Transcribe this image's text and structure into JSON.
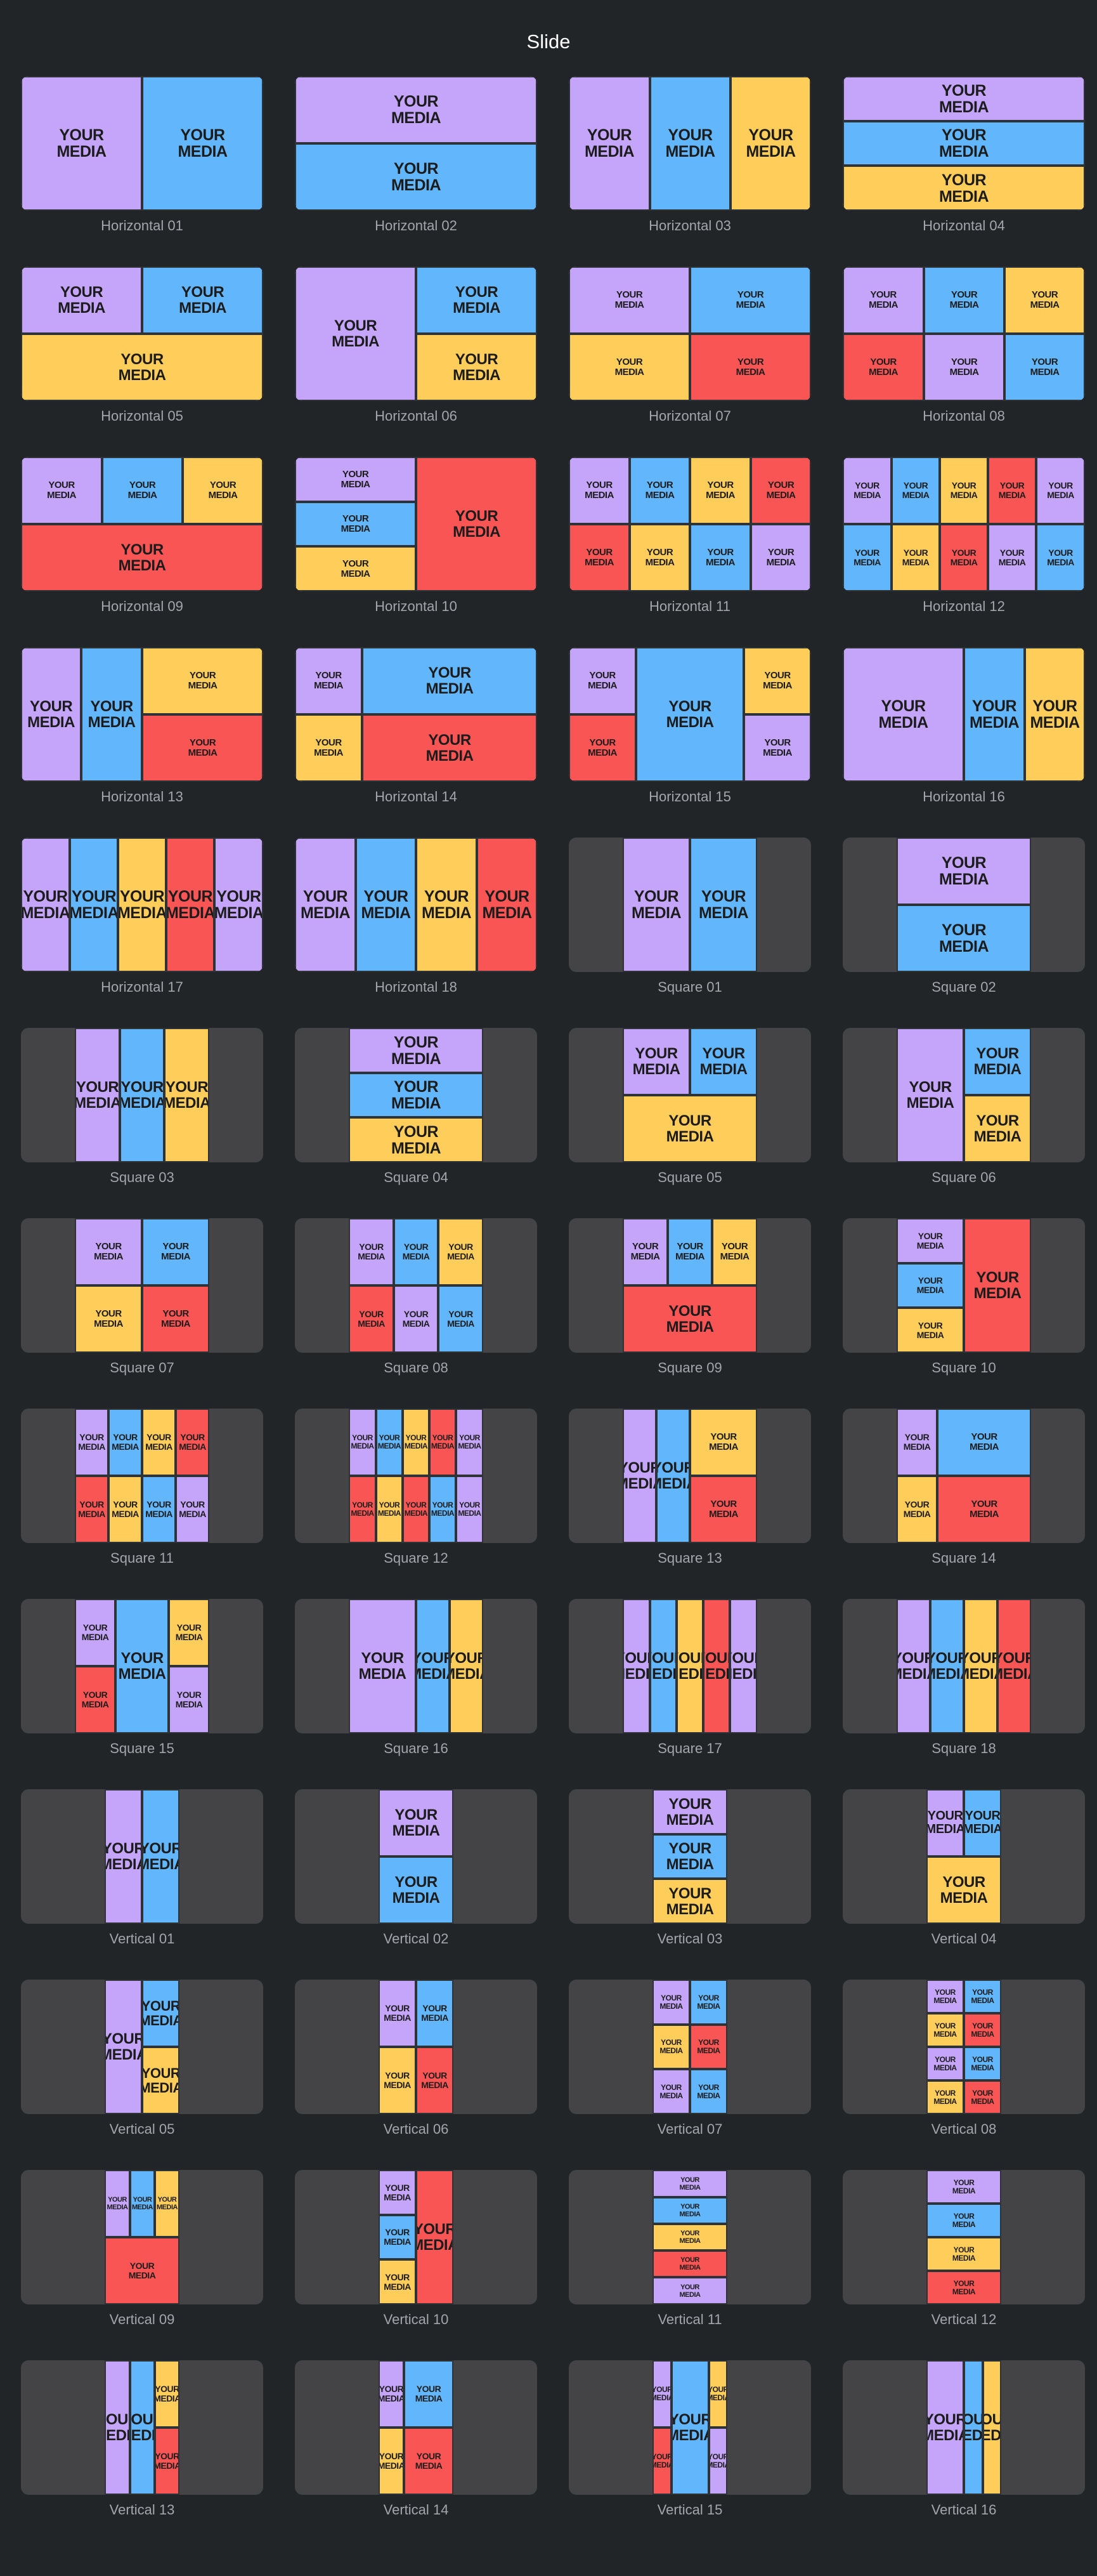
{
  "header": {
    "title": "Slide"
  },
  "media_text": "YOUR\nMEDIA",
  "colors": {
    "background": "#222528",
    "placeholder": "#444446",
    "cell_border": "#2e3338",
    "purple": "#c4a5fa",
    "blue": "#62b6fb",
    "yellow": "#fecd5a",
    "red": "#fa5555",
    "label": "#a3a6aa"
  },
  "layouts": [
    {
      "label": "Horizontal 01"
    },
    {
      "label": "Horizontal 02"
    },
    {
      "label": "Horizontal 03"
    },
    {
      "label": "Horizontal 04"
    },
    {
      "label": "Horizontal 05"
    },
    {
      "label": "Horizontal 06"
    },
    {
      "label": "Horizontal 07"
    },
    {
      "label": "Horizontal 08"
    },
    {
      "label": "Horizontal 09"
    },
    {
      "label": "Horizontal 10"
    },
    {
      "label": "Horizontal 11"
    },
    {
      "label": "Horizontal 12"
    },
    {
      "label": "Horizontal 13"
    },
    {
      "label": "Horizontal 14"
    },
    {
      "label": "Horizontal 15"
    },
    {
      "label": "Horizontal 16"
    },
    {
      "label": "Horizontal 17"
    },
    {
      "label": "Horizontal 18"
    },
    {
      "label": "Square 01"
    },
    {
      "label": "Square 02"
    },
    {
      "label": "Square 03"
    },
    {
      "label": "Square 04"
    },
    {
      "label": "Square 05"
    },
    {
      "label": "Square 06"
    },
    {
      "label": "Square 07"
    },
    {
      "label": "Square 08"
    },
    {
      "label": "Square 09"
    },
    {
      "label": "Square 10"
    },
    {
      "label": "Square 11"
    },
    {
      "label": "Square 12"
    },
    {
      "label": "Square 13"
    },
    {
      "label": "Square 14"
    },
    {
      "label": "Square 15"
    },
    {
      "label": "Square 16"
    },
    {
      "label": "Square 17"
    },
    {
      "label": "Square 18"
    },
    {
      "label": "Vertical 01"
    },
    {
      "label": "Vertical 02"
    },
    {
      "label": "Vertical 03"
    },
    {
      "label": "Vertical 04"
    },
    {
      "label": "Vertical 05"
    },
    {
      "label": "Vertical 06"
    },
    {
      "label": "Vertical 07"
    },
    {
      "label": "Vertical 08"
    },
    {
      "label": "Vertical 09"
    },
    {
      "label": "Vertical 10"
    },
    {
      "label": "Vertical 11"
    },
    {
      "label": "Vertical 12"
    },
    {
      "label": "Vertical 13"
    },
    {
      "label": "Vertical 14"
    },
    {
      "label": "Vertical 15"
    },
    {
      "label": "Vertical 16"
    }
  ]
}
